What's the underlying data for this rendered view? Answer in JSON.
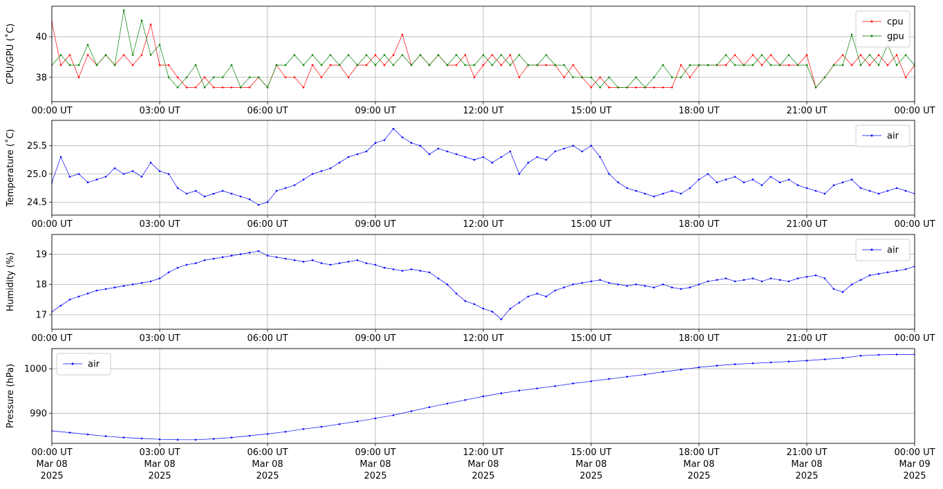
{
  "figure": {
    "x_tick_labels": [
      "00:00 UT",
      "03:00 UT",
      "06:00 UT",
      "09:00 UT",
      "12:00 UT",
      "15:00 UT",
      "18:00 UT",
      "21:00 UT",
      "00:00 UT"
    ],
    "bottom_date_labels": [
      "Mar 08",
      "Mar 08",
      "Mar 08",
      "Mar 08",
      "Mar 08",
      "Mar 08",
      "Mar 08",
      "Mar 08",
      "Mar 09"
    ],
    "bottom_year_labels": [
      "2025",
      "2025",
      "2025",
      "2025",
      "2025",
      "2025",
      "2025",
      "2025",
      "2025"
    ]
  },
  "chart_data": [
    {
      "type": "line",
      "ylabel": "CPU/GPU (˚C)",
      "ylim": [
        36.8,
        41.5
      ],
      "yticks": [
        38,
        40
      ],
      "xlim": [
        "2025-03-08T00:00Z",
        "2025-03-09T00:00Z"
      ],
      "grid": true,
      "legend": "top-right",
      "series": [
        {
          "name": "cpu",
          "color": "#ff0000",
          "x_hours": [
            0.0,
            0.25,
            0.5,
            0.75,
            1.0,
            1.25,
            1.5,
            1.75,
            2.0,
            2.25,
            2.5,
            2.75,
            3.0,
            3.25,
            3.5,
            3.75,
            4.0,
            4.25,
            4.5,
            4.75,
            5.0,
            5.25,
            5.5,
            5.75,
            6.0,
            6.25,
            6.5,
            6.75,
            7.0,
            7.25,
            7.5,
            7.75,
            8.0,
            8.25,
            8.5,
            8.75,
            9.0,
            9.25,
            9.5,
            9.75,
            10.0,
            10.25,
            10.5,
            10.75,
            11.0,
            11.25,
            11.5,
            11.75,
            12.0,
            12.25,
            12.5,
            12.75,
            13.0,
            13.25,
            13.5,
            13.75,
            14.0,
            14.25,
            14.5,
            14.75,
            15.0,
            15.25,
            15.5,
            15.75,
            16.0,
            16.25,
            16.5,
            16.75,
            17.0,
            17.25,
            17.5,
            17.75,
            18.0,
            18.25,
            18.5,
            18.75,
            19.0,
            19.25,
            19.5,
            19.75,
            20.0,
            20.25,
            20.5,
            20.75,
            21.0,
            21.25,
            21.5,
            21.75,
            22.0,
            22.25,
            22.5,
            22.75,
            23.0,
            23.25,
            23.5,
            23.75,
            24.0
          ],
          "values": [
            40.7,
            38.6,
            39.1,
            38.0,
            39.1,
            38.6,
            39.1,
            38.6,
            39.1,
            38.6,
            39.1,
            40.6,
            38.6,
            38.6,
            38.0,
            37.5,
            37.5,
            38.0,
            37.5,
            37.5,
            37.5,
            37.5,
            37.5,
            38.0,
            37.5,
            38.6,
            38.0,
            38.0,
            37.5,
            38.6,
            38.0,
            38.6,
            38.6,
            38.0,
            38.6,
            38.6,
            39.1,
            38.6,
            39.1,
            40.1,
            38.6,
            39.1,
            38.6,
            39.1,
            38.6,
            38.6,
            39.1,
            38.0,
            38.6,
            39.1,
            38.6,
            39.1,
            38.0,
            38.6,
            38.6,
            38.6,
            38.6,
            38.0,
            38.6,
            38.0,
            37.5,
            38.0,
            37.5,
            37.5,
            37.5,
            37.5,
            37.5,
            37.5,
            37.5,
            37.5,
            38.6,
            38.0,
            38.6,
            38.6,
            38.6,
            38.6,
            39.1,
            38.6,
            39.1,
            38.6,
            39.1,
            38.6,
            38.6,
            38.6,
            39.1,
            37.5,
            38.0,
            38.6,
            39.1,
            38.6,
            39.1,
            38.6,
            39.1,
            38.6,
            39.1,
            38.0,
            38.6
          ]
        },
        {
          "name": "gpu",
          "color": "#008000",
          "x_hours": [
            0.0,
            0.25,
            0.5,
            0.75,
            1.0,
            1.25,
            1.5,
            1.75,
            2.0,
            2.25,
            2.5,
            2.75,
            3.0,
            3.25,
            3.5,
            3.75,
            4.0,
            4.25,
            4.5,
            4.75,
            5.0,
            5.25,
            5.5,
            5.75,
            6.0,
            6.25,
            6.5,
            6.75,
            7.0,
            7.25,
            7.5,
            7.75,
            8.0,
            8.25,
            8.5,
            8.75,
            9.0,
            9.25,
            9.5,
            9.75,
            10.0,
            10.25,
            10.5,
            10.75,
            11.0,
            11.25,
            11.5,
            11.75,
            12.0,
            12.25,
            12.5,
            12.75,
            13.0,
            13.25,
            13.5,
            13.75,
            14.0,
            14.25,
            14.5,
            14.75,
            15.0,
            15.25,
            15.5,
            15.75,
            16.0,
            16.25,
            16.5,
            16.75,
            17.0,
            17.25,
            17.5,
            17.75,
            18.0,
            18.25,
            18.5,
            18.75,
            19.0,
            19.25,
            19.5,
            19.75,
            20.0,
            20.25,
            20.5,
            20.75,
            21.0,
            21.25,
            21.5,
            21.75,
            22.0,
            22.25,
            22.5,
            22.75,
            23.0,
            23.25,
            23.5,
            23.75,
            24.0
          ],
          "values": [
            38.6,
            39.1,
            38.6,
            38.6,
            39.6,
            38.6,
            39.1,
            38.6,
            41.3,
            39.1,
            40.8,
            39.1,
            39.6,
            38.0,
            37.5,
            38.0,
            38.6,
            37.5,
            38.0,
            38.0,
            38.6,
            37.5,
            38.0,
            38.0,
            37.5,
            38.6,
            38.6,
            39.1,
            38.6,
            39.1,
            38.6,
            39.1,
            38.6,
            39.1,
            38.6,
            39.1,
            38.6,
            39.1,
            38.6,
            39.1,
            38.6,
            39.1,
            38.6,
            39.1,
            38.6,
            39.1,
            38.6,
            38.6,
            39.1,
            38.6,
            39.1,
            38.6,
            39.1,
            38.6,
            38.6,
            39.1,
            38.6,
            38.6,
            38.0,
            38.0,
            38.0,
            37.5,
            38.0,
            37.5,
            37.5,
            38.0,
            37.5,
            38.0,
            38.6,
            38.0,
            38.0,
            38.6,
            38.6,
            38.6,
            38.6,
            39.1,
            38.6,
            38.6,
            38.6,
            39.1,
            38.6,
            38.6,
            39.1,
            38.6,
            38.6,
            37.5,
            38.0,
            38.6,
            38.6,
            40.1,
            38.6,
            39.1,
            38.6,
            39.6,
            38.6,
            39.1,
            38.6
          ]
        }
      ]
    },
    {
      "type": "line",
      "ylabel": "Temperature (˚C)",
      "ylim": [
        24.27,
        25.95
      ],
      "yticks": [
        24.5,
        25.0,
        25.5
      ],
      "ytick_labels": [
        "24.5",
        "25.0",
        "25.5"
      ],
      "xlim": [
        "2025-03-08T00:00Z",
        "2025-03-09T00:00Z"
      ],
      "grid": true,
      "legend": "top-right",
      "series": [
        {
          "name": "air",
          "color": "#0000ff",
          "x_hours": [
            0.0,
            0.25,
            0.5,
            0.75,
            1.0,
            1.25,
            1.5,
            1.75,
            2.0,
            2.25,
            2.5,
            2.75,
            3.0,
            3.25,
            3.5,
            3.75,
            4.0,
            4.25,
            4.5,
            4.75,
            5.0,
            5.25,
            5.5,
            5.75,
            6.0,
            6.25,
            6.5,
            6.75,
            7.0,
            7.25,
            7.5,
            7.75,
            8.0,
            8.25,
            8.5,
            8.75,
            9.0,
            9.25,
            9.5,
            9.75,
            10.0,
            10.25,
            10.5,
            10.75,
            11.0,
            11.25,
            11.5,
            11.75,
            12.0,
            12.25,
            12.5,
            12.75,
            13.0,
            13.25,
            13.5,
            13.75,
            14.0,
            14.25,
            14.5,
            14.75,
            15.0,
            15.25,
            15.5,
            15.75,
            16.0,
            16.25,
            16.5,
            16.75,
            17.0,
            17.25,
            17.5,
            17.75,
            18.0,
            18.25,
            18.5,
            18.75,
            19.0,
            19.25,
            19.5,
            19.75,
            20.0,
            20.25,
            20.5,
            20.75,
            21.0,
            21.25,
            21.5,
            21.75,
            22.0,
            22.25,
            22.5,
            22.75,
            23.0,
            23.25,
            23.5,
            23.75,
            24.0
          ],
          "values": [
            24.85,
            25.3,
            24.95,
            25.0,
            24.85,
            24.9,
            24.95,
            25.1,
            25.0,
            25.05,
            24.95,
            25.2,
            25.05,
            25.0,
            24.75,
            24.65,
            24.7,
            24.6,
            24.65,
            24.7,
            24.65,
            24.6,
            24.55,
            24.45,
            24.5,
            24.7,
            24.75,
            24.8,
            24.9,
            25.0,
            25.05,
            25.1,
            25.2,
            25.3,
            25.35,
            25.4,
            25.55,
            25.6,
            25.8,
            25.65,
            25.55,
            25.5,
            25.35,
            25.45,
            25.4,
            25.35,
            25.3,
            25.25,
            25.3,
            25.2,
            25.3,
            25.4,
            25.0,
            25.2,
            25.3,
            25.25,
            25.4,
            25.45,
            25.5,
            25.4,
            25.5,
            25.3,
            25.0,
            24.85,
            24.75,
            24.7,
            24.65,
            24.6,
            24.65,
            24.7,
            24.65,
            24.75,
            24.9,
            25.0,
            24.85,
            24.9,
            24.95,
            24.85,
            24.9,
            24.8,
            24.95,
            24.85,
            24.9,
            24.8,
            24.75,
            24.7,
            24.65,
            24.8,
            24.85,
            24.9,
            24.75,
            24.7,
            24.65,
            24.7,
            24.75,
            24.7,
            24.65
          ]
        }
      ]
    },
    {
      "type": "line",
      "ylabel": "Humidity (%)",
      "ylim": [
        16.52,
        19.65
      ],
      "yticks": [
        17,
        18,
        19
      ],
      "xlim": [
        "2025-03-08T00:00Z",
        "2025-03-09T00:00Z"
      ],
      "grid": true,
      "legend": "top-right",
      "series": [
        {
          "name": "air",
          "color": "#0000ff",
          "x_hours": [
            0.0,
            0.25,
            0.5,
            0.75,
            1.0,
            1.25,
            1.5,
            1.75,
            2.0,
            2.25,
            2.5,
            2.75,
            3.0,
            3.25,
            3.5,
            3.75,
            4.0,
            4.25,
            4.5,
            4.75,
            5.0,
            5.25,
            5.5,
            5.75,
            6.0,
            6.25,
            6.5,
            6.75,
            7.0,
            7.25,
            7.5,
            7.75,
            8.0,
            8.25,
            8.5,
            8.75,
            9.0,
            9.25,
            9.5,
            9.75,
            10.0,
            10.25,
            10.5,
            10.75,
            11.0,
            11.25,
            11.5,
            11.75,
            12.0,
            12.25,
            12.5,
            12.75,
            13.0,
            13.25,
            13.5,
            13.75,
            14.0,
            14.25,
            14.5,
            14.75,
            15.0,
            15.25,
            15.5,
            15.75,
            16.0,
            16.25,
            16.5,
            16.75,
            17.0,
            17.25,
            17.5,
            17.75,
            18.0,
            18.25,
            18.5,
            18.75,
            19.0,
            19.25,
            19.5,
            19.75,
            20.0,
            20.25,
            20.5,
            20.75,
            21.0,
            21.25,
            21.5,
            21.75,
            22.0,
            22.25,
            22.5,
            22.75,
            23.0,
            23.25,
            23.5,
            23.75,
            24.0
          ],
          "values": [
            17.1,
            17.3,
            17.5,
            17.6,
            17.7,
            17.8,
            17.85,
            17.9,
            17.95,
            18.0,
            18.05,
            18.1,
            18.2,
            18.4,
            18.55,
            18.65,
            18.7,
            18.8,
            18.85,
            18.9,
            18.95,
            19.0,
            19.05,
            19.1,
            18.95,
            18.9,
            18.85,
            18.8,
            18.75,
            18.8,
            18.7,
            18.65,
            18.7,
            18.75,
            18.8,
            18.7,
            18.65,
            18.55,
            18.5,
            18.45,
            18.5,
            18.45,
            18.4,
            18.2,
            18.0,
            17.7,
            17.45,
            17.35,
            17.2,
            17.1,
            16.85,
            17.2,
            17.4,
            17.6,
            17.7,
            17.6,
            17.8,
            17.9,
            18.0,
            18.05,
            18.1,
            18.15,
            18.05,
            18.0,
            17.95,
            18.0,
            17.95,
            17.9,
            18.0,
            17.9,
            17.85,
            17.9,
            18.0,
            18.1,
            18.15,
            18.2,
            18.1,
            18.15,
            18.2,
            18.1,
            18.2,
            18.15,
            18.1,
            18.2,
            18.25,
            18.3,
            18.2,
            17.85,
            17.75,
            18.0,
            18.15,
            18.3,
            18.35,
            18.4,
            18.45,
            18.5,
            18.6
          ]
        }
      ]
    },
    {
      "type": "line",
      "ylabel": "Pressure (hPa)",
      "ylim": [
        983.3,
        1004.5
      ],
      "yticks": [
        990,
        1000
      ],
      "xlim": [
        "2025-03-08T00:00Z",
        "2025-03-09T00:00Z"
      ],
      "grid": true,
      "legend": "top-left",
      "series": [
        {
          "name": "air",
          "color": "#0000ff",
          "x_hours": [
            0.0,
            0.5,
            1.0,
            1.5,
            2.0,
            2.5,
            3.0,
            3.5,
            4.0,
            4.5,
            5.0,
            5.5,
            6.0,
            6.5,
            7.0,
            7.5,
            8.0,
            8.5,
            9.0,
            9.5,
            10.0,
            10.5,
            11.0,
            11.5,
            12.0,
            12.5,
            13.0,
            13.5,
            14.0,
            14.5,
            15.0,
            15.5,
            16.0,
            16.5,
            17.0,
            17.5,
            18.0,
            18.5,
            19.0,
            19.5,
            20.0,
            20.5,
            21.0,
            21.5,
            22.0,
            22.5,
            23.0,
            23.5,
            24.0
          ],
          "values": [
            986.1,
            985.7,
            985.3,
            984.9,
            984.6,
            984.4,
            984.2,
            984.1,
            984.1,
            984.3,
            984.6,
            985.0,
            985.4,
            985.9,
            986.5,
            987.0,
            987.6,
            988.2,
            988.9,
            989.6,
            990.5,
            991.4,
            992.2,
            993.0,
            993.8,
            994.5,
            995.1,
            995.6,
            996.1,
            996.7,
            997.2,
            997.7,
            998.2,
            998.7,
            999.3,
            999.8,
            1000.3,
            1000.7,
            1001.0,
            1001.2,
            1001.4,
            1001.6,
            1001.8,
            1002.1,
            1002.4,
            1002.9,
            1003.1,
            1003.2,
            1003.2
          ]
        }
      ]
    }
  ]
}
